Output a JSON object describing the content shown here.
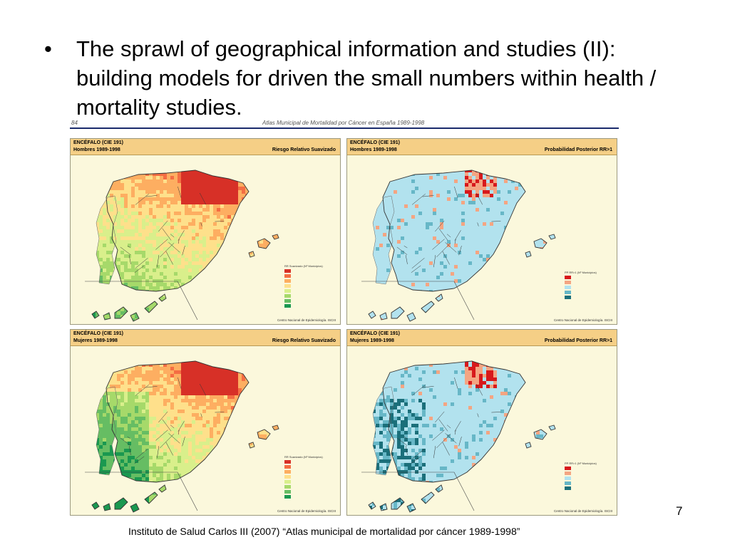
{
  "slide": {
    "bullet_symbol": "•",
    "bullet_text": "The sprawl of geographical information and studies (II): building models for driven the small numbers within health / mortality studies.",
    "page_number": "7",
    "citation": "Instituto de Salud Carlos III  (2007) “Atlas municipal de mortalidad por cáncer 1989-1998”"
  },
  "atlas": {
    "page": "84",
    "title": "Atlas Municipal de Mortalidad por Cáncer en España 1989-1998",
    "credit": "Centro Nacional de Epidemiología. ISCIII",
    "panels": [
      {
        "line1": "ENCÉFALO (CIE 191)",
        "line2": "Hombres 1989-1998",
        "right": "Riesgo Relativo Suavizado",
        "scheme": "rr",
        "sex": "hombres"
      },
      {
        "line1": "ENCÉFALO (CIE 191)",
        "line2": "Hombres 1989-1998",
        "right": "Probabilidad Posterior RR>1",
        "scheme": "pp",
        "sex": "hombres"
      },
      {
        "line1": "ENCÉFALO (CIE 191)",
        "line2": "Mujeres 1989-1998",
        "right": "Riesgo Relativo Suavizado",
        "scheme": "rr",
        "sex": "mujeres"
      },
      {
        "line1": "ENCÉFALO (CIE 191)",
        "line2": "Mujeres 1989-1998",
        "right": "Probabilidad Posterior RR>1",
        "scheme": "pp",
        "sex": "mujeres"
      }
    ],
    "legends": {
      "rr": {
        "title": "RR Suavizado     (Nº Municipios)",
        "colors": [
          "#d73027",
          "#f46d43",
          "#fdae61",
          "#fee08b",
          "#d9ef8b",
          "#a6d96a",
          "#66bd63",
          "#1a9850"
        ]
      },
      "pp": {
        "title": "PP RR>1     (Nº Municipios)",
        "colors": [
          "#d7191c",
          "#f4a582",
          "#b2e2ee",
          "#67b7c7",
          "#1b6f7a"
        ]
      }
    }
  }
}
